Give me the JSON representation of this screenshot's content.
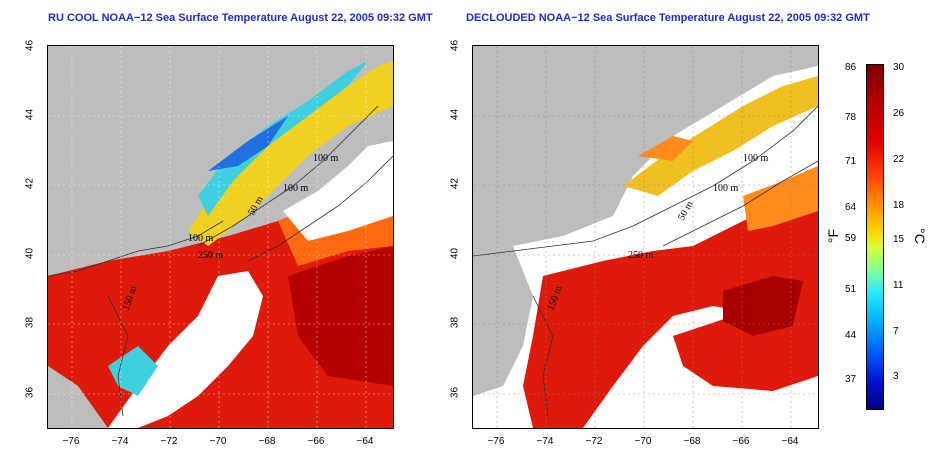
{
  "titles": {
    "left": "RU COOL NOAA−12 Sea Surface Temperature August 22, 2005 09:32 GMT",
    "right": "DECLOUDED NOAA−12 Sea Surface Temperature August 22, 2005 09:32 GMT"
  },
  "axes": {
    "x_ticks": [
      "−76",
      "−74",
      "−72",
      "−70",
      "−68",
      "−66",
      "−64"
    ],
    "y_ticks": [
      "36",
      "38",
      "40",
      "42",
      "44",
      "46"
    ],
    "lon_range": [
      -77,
      -63
    ],
    "lat_range": [
      35,
      46
    ]
  },
  "contour_labels": {
    "left": [
      "100 m",
      "100 m",
      "50 m",
      "250 m",
      "100 m",
      "150 m"
    ],
    "right": [
      "100 m",
      "100 m",
      "50 m",
      "250 m",
      "150 m"
    ]
  },
  "colorbar": {
    "fahrenheit": [
      "86",
      "78",
      "71",
      "64",
      "59",
      "51",
      "44",
      "37"
    ],
    "celsius": [
      "30",
      "26",
      "22",
      "18",
      "15",
      "11",
      "7",
      "3"
    ],
    "unit_f": "°F",
    "unit_c": "°C",
    "range_c": [
      0,
      30
    ]
  },
  "colors": {
    "title": "#1f2ad6",
    "land": "#bdbdbd",
    "cloud": "#ffffff",
    "warm": "#e01a0a",
    "hot": "#a80000",
    "mid": "#ff8c1a",
    "cool": "#3fd0e0"
  }
}
